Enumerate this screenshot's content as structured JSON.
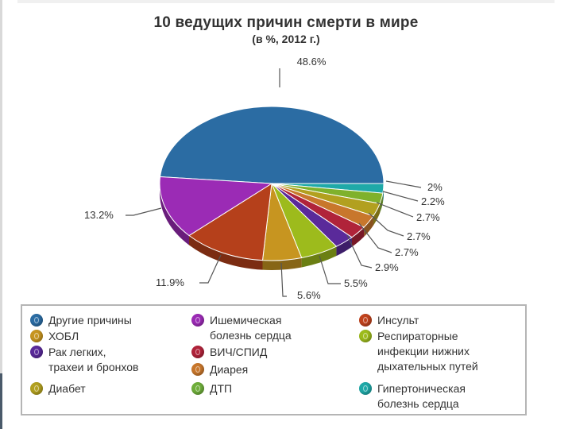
{
  "chart_data": {
    "type": "pie",
    "title": "10 ведущих причин смерти в мире",
    "subtitle": "(в %, 2012 г.)",
    "slices": [
      {
        "name": "Другие причины",
        "value": 48.6,
        "label": "48.6%",
        "color": "#2b6ca3"
      },
      {
        "name": "Гипертоническая\nболезнь сердца",
        "value": 2.0,
        "label": "2%",
        "color": "#1fa9a8"
      },
      {
        "name": "ДТП",
        "value": 2.2,
        "label": "2.2%",
        "color": "#7fb12c"
      },
      {
        "name": "Диабет",
        "value": 2.7,
        "label": "2.7%",
        "color": "#b2a01f"
      },
      {
        "name": "Диарея",
        "value": 2.7,
        "label": "2.7%",
        "color": "#c8772c"
      },
      {
        "name": "ВИЧ/СПИД",
        "value": 2.7,
        "label": "2.7%",
        "color": "#b0233a"
      },
      {
        "name": "Рак легких,\nтрахеи и бронхов",
        "value": 2.9,
        "label": "2.9%",
        "color": "#5a2a9a"
      },
      {
        "name": "Респираторные\nинфекции нижних\nдыхательных путей",
        "value": 5.5,
        "label": "5.5%",
        "color": "#9dbb1c"
      },
      {
        "name": "ХОБЛ",
        "value": 5.6,
        "label": "5.6%",
        "color": "#c79520"
      },
      {
        "name": "Инсульт",
        "value": 11.9,
        "label": "11.9%",
        "color": "#b5401b"
      },
      {
        "name": "Ишемическая\nболезнь сердца",
        "value": 13.2,
        "label": "13.2%",
        "color": "#9b2bb5"
      }
    ],
    "legend": [
      {
        "name": "Другие причины",
        "color": "#2b6ca3"
      },
      {
        "name": "Ишемическая\nболезнь сердца",
        "color": "#9b2bb5"
      },
      {
        "name": "Инсульт",
        "color": "#c0421c"
      },
      {
        "name": "ХОБЛ",
        "color": "#c79520"
      },
      {
        "name": "Респираторные\nинфекции нижних\nдыхательных путей",
        "color": "#9dbb1c"
      },
      {
        "name": "Рак легких,\nтрахеи и бронхов",
        "color": "#5a2a9a"
      },
      {
        "name": "ВИЧ/СПИД",
        "color": "#b0233a"
      },
      {
        "name": "Диарея",
        "color": "#c8772c"
      },
      {
        "name": "Диабет",
        "color": "#b2a01f"
      },
      {
        "name": "ДТП",
        "color": "#6fae3b"
      },
      {
        "name": "Гипертоническая\nболезнь сердца",
        "color": "#1fa9a8"
      }
    ],
    "legend_placement": "bottom"
  }
}
